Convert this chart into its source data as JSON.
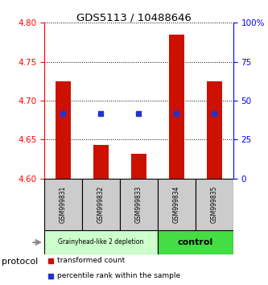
{
  "title": "GDS5113 / 10488646",
  "samples": [
    "GSM999831",
    "GSM999832",
    "GSM999833",
    "GSM999834",
    "GSM999835"
  ],
  "bar_tops": [
    4.725,
    4.643,
    4.632,
    4.785,
    4.725
  ],
  "bar_base": 4.6,
  "blue_square_values": [
    4.683,
    4.683,
    4.683,
    4.683,
    4.683
  ],
  "ylim_left": [
    4.6,
    4.8
  ],
  "yticks_left": [
    4.6,
    4.65,
    4.7,
    4.75,
    4.8
  ],
  "ylim_right": [
    0,
    100
  ],
  "yticks_right": [
    0,
    25,
    50,
    75,
    100
  ],
  "bar_color": "#cc1100",
  "blue_color": "#2233cc",
  "bg_color": "#ffffff",
  "sample_box_color": "#cccccc",
  "group1_label": "Grainyhead-like 2 depletion",
  "group2_label": "control",
  "group1_color": "#ccffcc",
  "group2_color": "#44dd44",
  "protocol_label": "protocol",
  "legend_red_label": "transformed count",
  "legend_blue_label": "percentile rank within the sample",
  "bar_width": 0.4
}
